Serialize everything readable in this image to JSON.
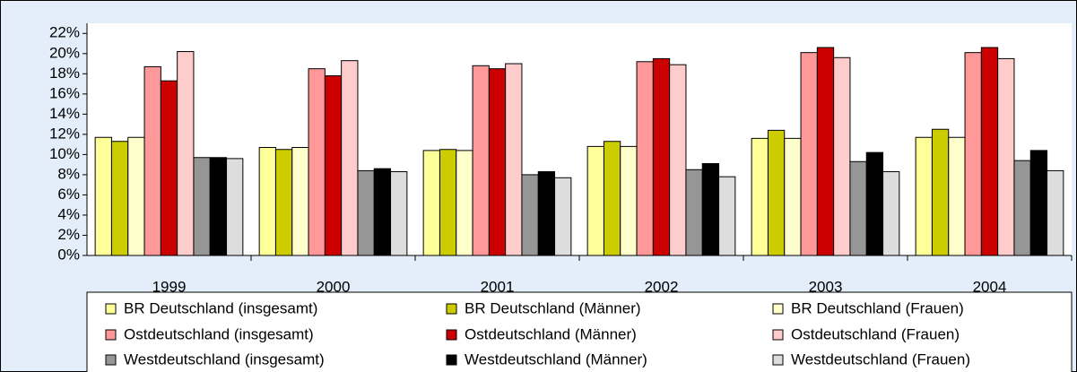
{
  "chart_data": {
    "type": "bar",
    "categories": [
      "1999",
      "2000",
      "2001",
      "2002",
      "2003",
      "2004"
    ],
    "series": [
      {
        "name": "BR Deutschland (insgesamt)",
        "color": "#ffff99",
        "values": [
          11.7,
          10.7,
          10.4,
          10.8,
          11.6,
          11.7
        ]
      },
      {
        "name": "BR Deutschland (Männer)",
        "color": "#cccc00",
        "values": [
          11.3,
          10.5,
          10.5,
          11.3,
          12.4,
          12.5
        ]
      },
      {
        "name": "BR Deutschland (Frauen)",
        "color": "#ffffcc",
        "values": [
          11.7,
          10.7,
          10.4,
          10.8,
          11.6,
          11.7
        ]
      },
      {
        "name": "Ostdeutschland (insgesamt)",
        "color": "#ff9999",
        "values": [
          18.7,
          18.5,
          18.8,
          19.2,
          20.1,
          20.1
        ]
      },
      {
        "name": "Ostdeutschland (Männer)",
        "color": "#cc0000",
        "values": [
          17.3,
          17.8,
          18.5,
          19.5,
          20.6,
          20.6
        ]
      },
      {
        "name": "Ostdeutschland (Frauen)",
        "color": "#ffcccc",
        "values": [
          20.2,
          19.3,
          19.0,
          18.9,
          19.6,
          19.5
        ]
      },
      {
        "name": "Westdeutschland (insgesamt)",
        "color": "#969696",
        "values": [
          9.7,
          8.4,
          8.0,
          8.5,
          9.3,
          9.4
        ]
      },
      {
        "name": "Westdeutschland (Männer)",
        "color": "#000000",
        "values": [
          9.7,
          8.6,
          8.3,
          9.1,
          10.2,
          10.4
        ]
      },
      {
        "name": "Westdeutschland (Frauen)",
        "color": "#dddddd",
        "values": [
          9.6,
          8.3,
          7.7,
          7.8,
          8.3,
          8.4
        ]
      }
    ],
    "ylim": [
      0,
      23
    ],
    "yticks": [
      {
        "value": 0,
        "label": "0%"
      },
      {
        "value": 2,
        "label": "2%"
      },
      {
        "value": 4,
        "label": "4%"
      },
      {
        "value": 6,
        "label": "6%"
      },
      {
        "value": 8,
        "label": "8%"
      },
      {
        "value": 10,
        "label": "10%"
      },
      {
        "value": 12,
        "label": "12%"
      },
      {
        "value": 14,
        "label": "14%"
      },
      {
        "value": 16,
        "label": "16%"
      },
      {
        "value": 18,
        "label": "18%"
      },
      {
        "value": 20,
        "label": "20%"
      },
      {
        "value": 22,
        "label": "22%"
      }
    ],
    "legend": "bottom"
  }
}
